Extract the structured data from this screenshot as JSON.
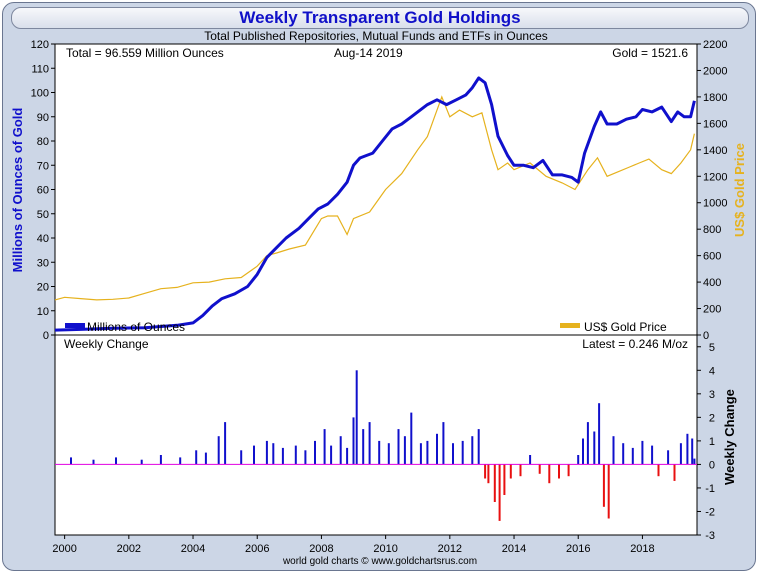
{
  "chart_data": [
    {
      "type": "line",
      "title": "Weekly Transparent Gold Holdings",
      "subtitle": "Total Published Repositories, Mutual Funds and ETFs in Ounces",
      "ylabel": "Millions of Ounces of Gold",
      "y2label": "US$ Gold Price",
      "ylim": [
        0,
        120
      ],
      "y2lim": [
        0,
        2200
      ],
      "xlim": [
        1999.7,
        2019.7
      ],
      "y_ticks": [
        "0",
        "10",
        "20",
        "30",
        "40",
        "50",
        "60",
        "70",
        "80",
        "90",
        "100",
        "110",
        "120"
      ],
      "y2_ticks": [
        "0",
        "200",
        "400",
        "600",
        "800",
        "1000",
        "1200",
        "1400",
        "1600",
        "1800",
        "2000",
        "2200"
      ],
      "x_ticks": [
        "2000",
        "2002",
        "2004",
        "2006",
        "2008",
        "2010",
        "2012",
        "2014",
        "2016",
        "2018"
      ],
      "total_text": "Total = 96.559 Million Ounces",
      "date_text": "Aug-14  2019",
      "price_text": "Gold = 1521.6",
      "legend_position": "inside-bottom",
      "series": [
        {
          "name": "Millions of Ounces",
          "color": "#1010cc",
          "axis": "left",
          "x": [
            1999.7,
            2000.5,
            2001.5,
            2002.5,
            2003.0,
            2003.5,
            2004.0,
            2004.3,
            2004.6,
            2004.9,
            2005.3,
            2005.7,
            2006.0,
            2006.3,
            2006.6,
            2006.9,
            2007.3,
            2007.6,
            2007.9,
            2008.2,
            2008.5,
            2008.8,
            2009.0,
            2009.2,
            2009.4,
            2009.6,
            2009.9,
            2010.2,
            2010.5,
            2010.8,
            2011.0,
            2011.3,
            2011.6,
            2011.9,
            2012.2,
            2012.5,
            2012.7,
            2012.9,
            2013.1,
            2013.3,
            2013.5,
            2013.8,
            2014.0,
            2014.3,
            2014.6,
            2014.9,
            2015.2,
            2015.5,
            2015.8,
            2016.0,
            2016.2,
            2016.5,
            2016.7,
            2016.9,
            2017.2,
            2017.5,
            2017.8,
            2018.0,
            2018.3,
            2018.6,
            2018.9,
            2019.1,
            2019.3,
            2019.5,
            2019.62
          ],
          "values": [
            2,
            2.3,
            2.8,
            3,
            3.5,
            4,
            5,
            8,
            12,
            15,
            17,
            20,
            25,
            32,
            36,
            40,
            44,
            48,
            52,
            54,
            58,
            63,
            70,
            73,
            74,
            75,
            80,
            85,
            87,
            90,
            92,
            95,
            97,
            95,
            97,
            99,
            102,
            106,
            104,
            95,
            82,
            74,
            70,
            70,
            69,
            72,
            66,
            66,
            65,
            63,
            75,
            86,
            92,
            87,
            87,
            89,
            90,
            93,
            92,
            94,
            88,
            92,
            90,
            90,
            96.559
          ]
        },
        {
          "name": "US$ Gold Price",
          "color": "#e6b21e",
          "axis": "right",
          "x": [
            1999.7,
            2000.0,
            2000.5,
            2001.0,
            2001.5,
            2002.0,
            2002.5,
            2003.0,
            2003.5,
            2004.0,
            2004.5,
            2005.0,
            2005.5,
            2006.0,
            2006.3,
            2006.6,
            2007.0,
            2007.5,
            2008.0,
            2008.2,
            2008.5,
            2008.8,
            2009.0,
            2009.5,
            2010.0,
            2010.5,
            2011.0,
            2011.3,
            2011.6,
            2011.75,
            2012.0,
            2012.3,
            2012.7,
            2013.0,
            2013.3,
            2013.5,
            2013.8,
            2014.0,
            2014.5,
            2015.0,
            2015.5,
            2015.9,
            2016.3,
            2016.6,
            2016.9,
            2017.2,
            2017.6,
            2017.9,
            2018.2,
            2018.6,
            2018.9,
            2019.2,
            2019.5,
            2019.62
          ],
          "values": [
            265,
            285,
            275,
            265,
            270,
            280,
            315,
            350,
            360,
            395,
            400,
            425,
            435,
            520,
            600,
            620,
            650,
            680,
            880,
            900,
            900,
            760,
            880,
            930,
            1100,
            1220,
            1400,
            1500,
            1700,
            1800,
            1650,
            1700,
            1650,
            1680,
            1400,
            1250,
            1300,
            1250,
            1300,
            1200,
            1150,
            1100,
            1250,
            1340,
            1200,
            1230,
            1270,
            1300,
            1330,
            1250,
            1220,
            1300,
            1400,
            1521.6
          ]
        }
      ]
    },
    {
      "type": "bar",
      "title": "Weekly Change",
      "ylabel": "Weekly Change",
      "latest_text": "Latest = 0.246 M/oz",
      "ylim": [
        -3,
        5.5
      ],
      "y_ticks": [
        "-3",
        "-2",
        "-1",
        "0",
        "1",
        "2",
        "3",
        "4",
        "5"
      ],
      "positive_color": "#1010cc",
      "negative_color": "#e81010",
      "zero_line_color": "#e000e0",
      "series": [
        {
          "name": "Weekly Change",
          "x": [
            2000.2,
            2000.9,
            2001.6,
            2002.4,
            2003.0,
            2003.6,
            2004.1,
            2004.4,
            2004.8,
            2005.0,
            2005.5,
            2005.9,
            2006.3,
            2006.5,
            2006.8,
            2007.2,
            2007.5,
            2007.8,
            2008.1,
            2008.3,
            2008.6,
            2008.8,
            2009.0,
            2009.1,
            2009.3,
            2009.5,
            2009.8,
            2010.1,
            2010.4,
            2010.6,
            2010.8,
            2011.1,
            2011.3,
            2011.6,
            2011.8,
            2012.1,
            2012.4,
            2012.7,
            2012.9,
            2013.1,
            2013.2,
            2013.4,
            2013.55,
            2013.7,
            2013.9,
            2014.2,
            2014.5,
            2014.8,
            2015.1,
            2015.4,
            2015.7,
            2016.0,
            2016.15,
            2016.3,
            2016.5,
            2016.65,
            2016.8,
            2016.95,
            2017.1,
            2017.4,
            2017.7,
            2018.0,
            2018.3,
            2018.5,
            2018.8,
            2019.0,
            2019.2,
            2019.4,
            2019.55,
            2019.62
          ],
          "values": [
            0.3,
            0.2,
            0.3,
            0.2,
            0.4,
            0.3,
            0.6,
            0.5,
            1.2,
            1.8,
            0.6,
            0.8,
            1.0,
            0.9,
            0.7,
            0.8,
            0.6,
            1.0,
            1.5,
            0.8,
            1.2,
            0.7,
            2.0,
            4.0,
            1.5,
            1.8,
            1.0,
            0.9,
            1.5,
            1.2,
            2.2,
            0.9,
            1.0,
            1.3,
            1.8,
            0.9,
            1.0,
            1.2,
            1.5,
            -0.6,
            -0.8,
            -1.6,
            -2.4,
            -1.3,
            -0.6,
            -0.5,
            0.4,
            -0.4,
            -0.8,
            -0.6,
            -0.5,
            0.4,
            1.1,
            1.8,
            1.4,
            2.6,
            -1.8,
            -2.3,
            1.2,
            0.9,
            0.7,
            1.0,
            0.8,
            -0.5,
            0.6,
            -0.7,
            0.9,
            1.3,
            1.1,
            0.246
          ]
        }
      ]
    }
  ],
  "footer": "world gold charts © www.goldchartsrus.com"
}
